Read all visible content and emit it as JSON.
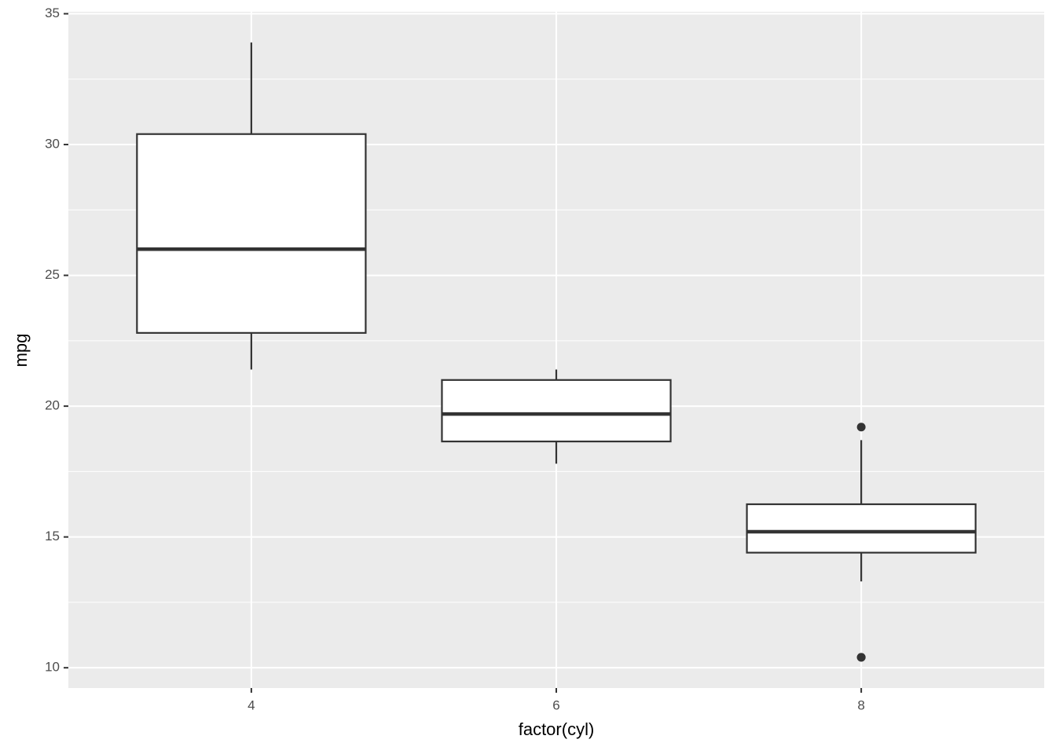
{
  "chart_data": {
    "type": "box",
    "x_label": "factor(cyl)",
    "y_label": "mpg",
    "categories": [
      "4",
      "6",
      "8"
    ],
    "boxes": [
      {
        "min": 21.4,
        "q1": 22.8,
        "median": 26.0,
        "q3": 30.4,
        "max": 33.9,
        "outliers": []
      },
      {
        "min": 17.8,
        "q1": 18.65,
        "median": 19.7,
        "q3": 21.0,
        "max": 21.4,
        "outliers": []
      },
      {
        "min": 13.3,
        "q1": 14.4,
        "median": 15.2,
        "q3": 16.25,
        "max": 18.7,
        "outliers": [
          19.2,
          10.4,
          10.4
        ]
      }
    ],
    "color": "#333333",
    "fill": "#ffffff",
    "panel_color": "#ebebeb",
    "ylim": [
      9.225,
      35.075
    ],
    "yticks": [
      10,
      15,
      20,
      25,
      30,
      35
    ],
    "minor_yticks": [
      12.5,
      17.5,
      22.5,
      27.5,
      32.5
    ],
    "grid": true
  }
}
